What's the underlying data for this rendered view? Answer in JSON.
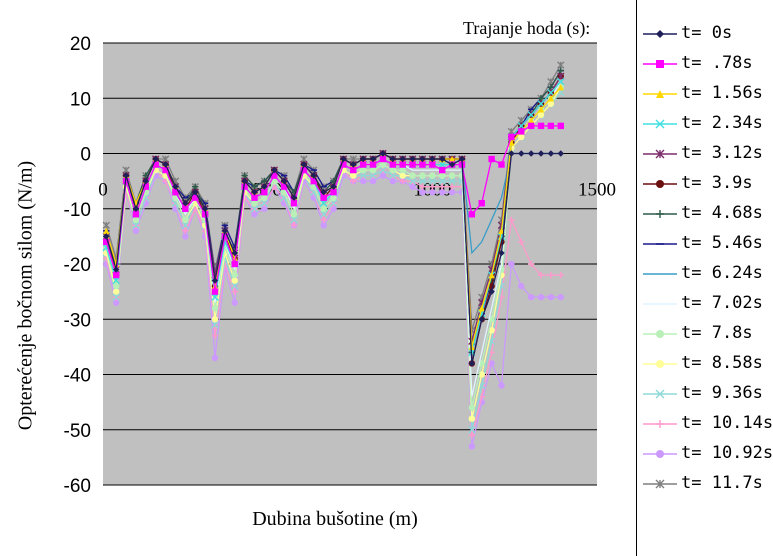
{
  "chart_data": {
    "type": "line",
    "xlabel": "Dubina bušotine (m)",
    "ylabel": "Opterećenje bočnom silom (N/m)",
    "legend_title": "Trajanje hoda (s):",
    "xlim": [
      0,
      1500
    ],
    "ylim": [
      -60,
      20
    ],
    "x_ticks": [
      "0",
      "500",
      "1000",
      "1500"
    ],
    "y_ticks": [
      "20",
      "10",
      "0",
      "-10",
      "-20",
      "-30",
      "-40",
      "-50",
      "-60"
    ],
    "grid": "horizontal",
    "background": "#c0c0c0",
    "x": [
      10,
      40,
      70,
      100,
      130,
      160,
      190,
      220,
      250,
      280,
      310,
      340,
      370,
      400,
      430,
      460,
      490,
      520,
      550,
      580,
      610,
      640,
      670,
      700,
      730,
      760,
      790,
      820,
      850,
      880,
      910,
      940,
      970,
      1000,
      1030,
      1060,
      1090,
      1120,
      1150,
      1180,
      1210,
      1240,
      1270,
      1300,
      1330,
      1360,
      1390
    ],
    "series": [
      {
        "name": "t= 0s",
        "color": "#1f1f5a",
        "marker": "diamond",
        "values": [
          -15,
          -21,
          -4,
          -10,
          -5,
          -1,
          -2,
          -6,
          -9,
          -7,
          -10,
          -23,
          -14,
          -18,
          -5,
          -7,
          -6,
          -3,
          -5,
          -8,
          -2,
          -4,
          -7,
          -6,
          -1,
          -2,
          -1,
          -1,
          0,
          -1,
          -1,
          -1,
          -1,
          -1,
          -1,
          -2,
          -1,
          -38,
          -30,
          -25,
          -18,
          0,
          0,
          0,
          0,
          0,
          0
        ]
      },
      {
        "name": "t= .78s",
        "color": "#ff00ff",
        "marker": "square",
        "values": [
          -16,
          -22,
          -5,
          -11,
          -6,
          -2,
          -3,
          -7,
          -10,
          -8,
          -11,
          -25,
          -15,
          -20,
          -6,
          -8,
          -7,
          -4,
          -6,
          -9,
          -3,
          -5,
          -8,
          -7,
          -2,
          -3,
          -2,
          -2,
          -1,
          -2,
          -2,
          -2,
          -2,
          -2,
          -3,
          -2,
          -2,
          -11,
          -9,
          -1,
          -2,
          3,
          4,
          5,
          5,
          5,
          5
        ]
      },
      {
        "name": "t= 1.56s",
        "color": "#ffd700",
        "marker": "triangle",
        "values": [
          -14,
          -20,
          -4,
          -9,
          -5,
          -1,
          -2,
          -6,
          -9,
          -7,
          -10,
          -24,
          -14,
          -19,
          -5,
          -7,
          -6,
          -3,
          -5,
          -8,
          -2,
          -4,
          -7,
          -6,
          -1,
          -2,
          -1,
          -1,
          0,
          -1,
          -1,
          -1,
          -1,
          -1,
          -1,
          -1,
          -1,
          -35,
          -28,
          -22,
          -14,
          2,
          4,
          6,
          8,
          10,
          12
        ]
      },
      {
        "name": "t= 2.34s",
        "color": "#40e0e0",
        "marker": "x",
        "values": [
          -17,
          -23,
          -5,
          -11,
          -6,
          -2,
          -3,
          -7,
          -10,
          -8,
          -11,
          -26,
          -16,
          -20,
          -6,
          -8,
          -7,
          -4,
          -6,
          -9,
          -3,
          -5,
          -9,
          -7,
          -2,
          -3,
          -2,
          -2,
          -1,
          -2,
          -2,
          -2,
          -2,
          -2,
          -2,
          -2,
          -2,
          -36,
          -29,
          -22,
          -15,
          3,
          5,
          7,
          9,
          11,
          13
        ]
      },
      {
        "name": "t= 3.12s",
        "color": "#7b2d6b",
        "marker": "star",
        "values": [
          -15,
          -21,
          -4,
          -10,
          -5,
          -1,
          -2,
          -6,
          -9,
          -7,
          -10,
          -22,
          -14,
          -18,
          -5,
          -7,
          -6,
          -3,
          -5,
          -8,
          -2,
          -4,
          -7,
          -6,
          -1,
          -2,
          -1,
          -1,
          0,
          -1,
          -1,
          -1,
          -1,
          -1,
          -1,
          -1,
          -1,
          -34,
          -27,
          -21,
          -13,
          3,
          5,
          7,
          9,
          11,
          14
        ]
      },
      {
        "name": "t= 3.9s",
        "color": "#6b0f0f",
        "marker": "circle",
        "values": [
          -16,
          -22,
          -4,
          -10,
          -5,
          -1,
          -2,
          -7,
          -10,
          -7,
          -11,
          -24,
          -15,
          -19,
          -5,
          -7,
          -6,
          -3,
          -5,
          -8,
          -2,
          -4,
          -8,
          -6,
          -1,
          -2,
          -1,
          -1,
          0,
          -1,
          -1,
          -1,
          -1,
          -1,
          -1,
          -1,
          -1,
          -38,
          -30,
          -24,
          -16,
          2,
          5,
          7,
          9,
          11,
          14
        ]
      },
      {
        "name": "t= 4.68s",
        "color": "#2e5b4a",
        "marker": "plus",
        "values": [
          -15,
          -20,
          -4,
          -9,
          -4,
          -1,
          -2,
          -6,
          -9,
          -6,
          -10,
          -23,
          -14,
          -18,
          -4,
          -6,
          -5,
          -3,
          -5,
          -7,
          -2,
          -4,
          -7,
          -5,
          -1,
          -2,
          -1,
          -1,
          0,
          -1,
          -1,
          -1,
          -1,
          -1,
          -1,
          -1,
          -1,
          -36,
          -28,
          -23,
          -15,
          3,
          5,
          7,
          10,
          12,
          15
        ]
      },
      {
        "name": "t= 5.46s",
        "color": "#1a1a8c",
        "marker": "dash",
        "values": [
          -14,
          -20,
          -4,
          -9,
          -5,
          -1,
          -2,
          -6,
          -8,
          -7,
          -9,
          -22,
          -13,
          -17,
          -5,
          -6,
          -5,
          -3,
          -4,
          -7,
          -2,
          -3,
          -6,
          -5,
          -1,
          -2,
          -1,
          -1,
          0,
          -1,
          -1,
          -1,
          -1,
          -1,
          -1,
          -1,
          -1,
          -36,
          -29,
          -23,
          -15,
          3,
          5,
          8,
          10,
          12,
          15
        ]
      },
      {
        "name": "t= 6.24s",
        "color": "#3a9ec8",
        "marker": "none",
        "values": [
          -15,
          -21,
          -4,
          -10,
          -5,
          -1,
          -2,
          -6,
          -9,
          -7,
          -10,
          -23,
          -14,
          -18,
          -5,
          -7,
          -6,
          -3,
          -5,
          -8,
          -2,
          -4,
          -7,
          -6,
          -1,
          -2,
          -1,
          -1,
          0,
          -1,
          -1,
          -1,
          -1,
          -1,
          -1,
          -1,
          -1,
          -18,
          -16,
          -12,
          -8,
          0,
          0,
          0,
          0,
          0,
          0
        ]
      },
      {
        "name": "t= 7.02s",
        "color": "#e0f4ff",
        "marker": "none",
        "values": [
          -16,
          -23,
          -5,
          -11,
          -6,
          -2,
          -3,
          -7,
          -11,
          -8,
          -11,
          -27,
          -16,
          -21,
          -6,
          -8,
          -7,
          -4,
          -6,
          -10,
          -3,
          -5,
          -9,
          -7,
          -2,
          -3,
          -2,
          -2,
          -1,
          -2,
          -2,
          -3,
          -3,
          -3,
          -3,
          -3,
          -3,
          -44,
          -36,
          -28,
          -20,
          2,
          4,
          6,
          8,
          10,
          13
        ]
      },
      {
        "name": "t= 7.8s",
        "color": "#b8f0b8",
        "marker": "circle",
        "values": [
          -17,
          -24,
          -5,
          -12,
          -7,
          -2,
          -3,
          -8,
          -12,
          -8,
          -12,
          -28,
          -17,
          -22,
          -6,
          -9,
          -8,
          -5,
          -7,
          -11,
          -3,
          -6,
          -10,
          -8,
          -2,
          -3,
          -3,
          -3,
          -2,
          -3,
          -3,
          -4,
          -4,
          -4,
          -4,
          -4,
          -4,
          -46,
          -38,
          -30,
          -21,
          2,
          4,
          6,
          8,
          10,
          12
        ]
      },
      {
        "name": "t= 8.58s",
        "color": "#ffff99",
        "marker": "circle",
        "values": [
          -18,
          -25,
          -6,
          -12,
          -7,
          -3,
          -4,
          -8,
          -12,
          -9,
          -13,
          -30,
          -18,
          -23,
          -7,
          -9,
          -8,
          -5,
          -7,
          -11,
          -4,
          -6,
          -10,
          -8,
          -3,
          -4,
          -3,
          -3,
          -2,
          -3,
          -4,
          -4,
          -4,
          -4,
          -4,
          -4,
          -4,
          -48,
          -40,
          -32,
          -22,
          1,
          3,
          5,
          7,
          9,
          12
        ]
      },
      {
        "name": "t= 9.36s",
        "color": "#8fd8d8",
        "marker": "x",
        "values": [
          -18,
          -26,
          -6,
          -13,
          -8,
          -3,
          -4,
          -9,
          -13,
          -9,
          -13,
          -31,
          -19,
          -24,
          -7,
          -10,
          -9,
          -5,
          -8,
          -12,
          -4,
          -7,
          -11,
          -9,
          -3,
          -4,
          -4,
          -4,
          -3,
          -4,
          -4,
          -5,
          -5,
          -5,
          -5,
          -5,
          -5,
          -50,
          -42,
          -34,
          -24,
          1,
          3,
          5,
          7,
          9,
          11
        ]
      },
      {
        "name": "t= 10.14s",
        "color": "#ff99cc",
        "marker": "plus",
        "values": [
          -19,
          -26,
          -7,
          -13,
          -8,
          -3,
          -5,
          -9,
          -14,
          -10,
          -14,
          -33,
          -20,
          -25,
          -8,
          -10,
          -9,
          -6,
          -8,
          -13,
          -4,
          -7,
          -12,
          -9,
          -3,
          -5,
          -4,
          -4,
          -3,
          -4,
          -5,
          -5,
          -6,
          -6,
          -6,
          -6,
          -6,
          -51,
          -44,
          -36,
          -26,
          -12,
          -16,
          -20,
          -22,
          -22,
          -22
        ]
      },
      {
        "name": "t= 10.92s",
        "color": "#cc99ff",
        "marker": "circle",
        "values": [
          -20,
          -27,
          -7,
          -14,
          -9,
          -4,
          -5,
          -10,
          -15,
          -10,
          -15,
          -37,
          -21,
          -27,
          -8,
          -11,
          -10,
          -6,
          -9,
          -13,
          -5,
          -8,
          -13,
          -10,
          -4,
          -5,
          -5,
          -5,
          -4,
          -5,
          -5,
          -6,
          -7,
          -7,
          -7,
          -7,
          -7,
          -53,
          -45,
          -38,
          -42,
          -20,
          -24,
          -26,
          -26,
          -26,
          -26
        ]
      },
      {
        "name": "t= 11.7s",
        "color": "#7f7f7f",
        "marker": "star",
        "values": [
          -13,
          -19,
          -3,
          -9,
          -4,
          -1,
          -1,
          -5,
          -8,
          -6,
          -9,
          -21,
          -13,
          -17,
          -4,
          -6,
          -5,
          -3,
          -4,
          -7,
          -1,
          -3,
          -6,
          -5,
          -1,
          -1,
          -1,
          -1,
          0,
          -1,
          -1,
          -1,
          -1,
          -1,
          -1,
          -1,
          -1,
          -32,
          -26,
          -20,
          -12,
          4,
          6,
          8,
          10,
          13,
          16
        ]
      }
    ]
  }
}
